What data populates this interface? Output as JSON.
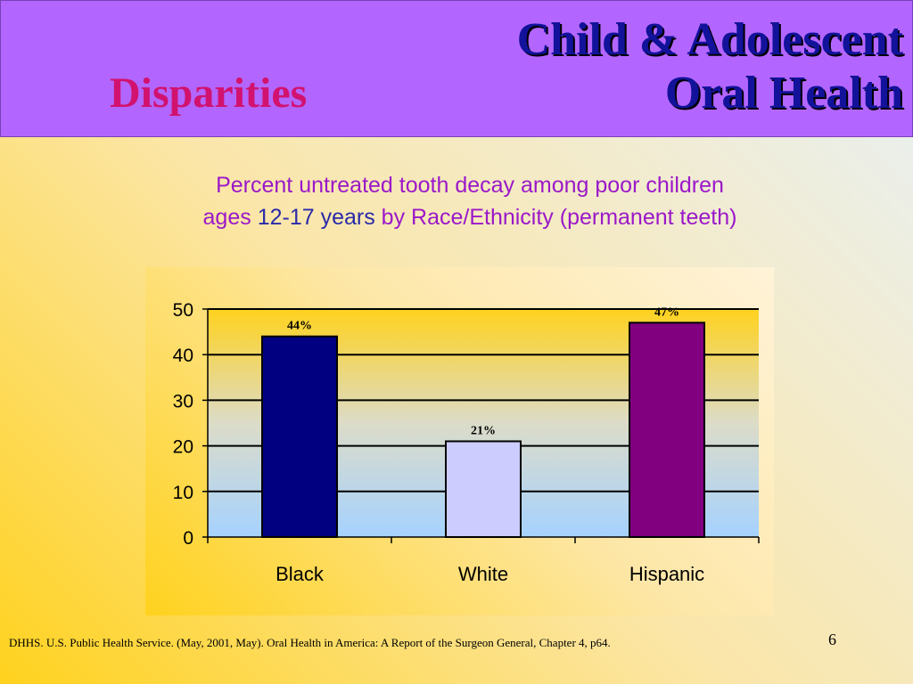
{
  "header": {
    "title_line1": "Child & Adolescent",
    "title_line2": "Oral Health",
    "section": "Disparities"
  },
  "subtitle": {
    "line1": "Percent untreated tooth decay among poor children",
    "line2_part1": "ages ",
    "line2_part2": "12-17 years",
    "line2_part3": " by Race/Ethnicity (permanent teeth)"
  },
  "chart_data": {
    "type": "bar",
    "categories": [
      "Black",
      "White",
      "Hispanic"
    ],
    "values": [
      44,
      21,
      47
    ],
    "data_labels": [
      "44%",
      "21%",
      "47%"
    ],
    "colors": [
      "#000080",
      "#ccccff",
      "#800080"
    ],
    "ylim": [
      0,
      50
    ],
    "yticks": [
      0,
      10,
      20,
      30,
      40,
      50
    ],
    "ytick_labels": [
      "0",
      "10",
      "20",
      "30",
      "40",
      "50"
    ],
    "grid": true,
    "legend": false
  },
  "footer": {
    "citation": "DHHS. U.S. Public Health Service. (May, 2001, May).  Oral Health in America:  A Report of the Surgeon General, Chapter 4, p64.",
    "page_number": "6"
  },
  "colors": {
    "header_bg": "#b366ff",
    "title": "#12129a",
    "section": "#d1126e",
    "subtitle": "#9b18c9"
  }
}
